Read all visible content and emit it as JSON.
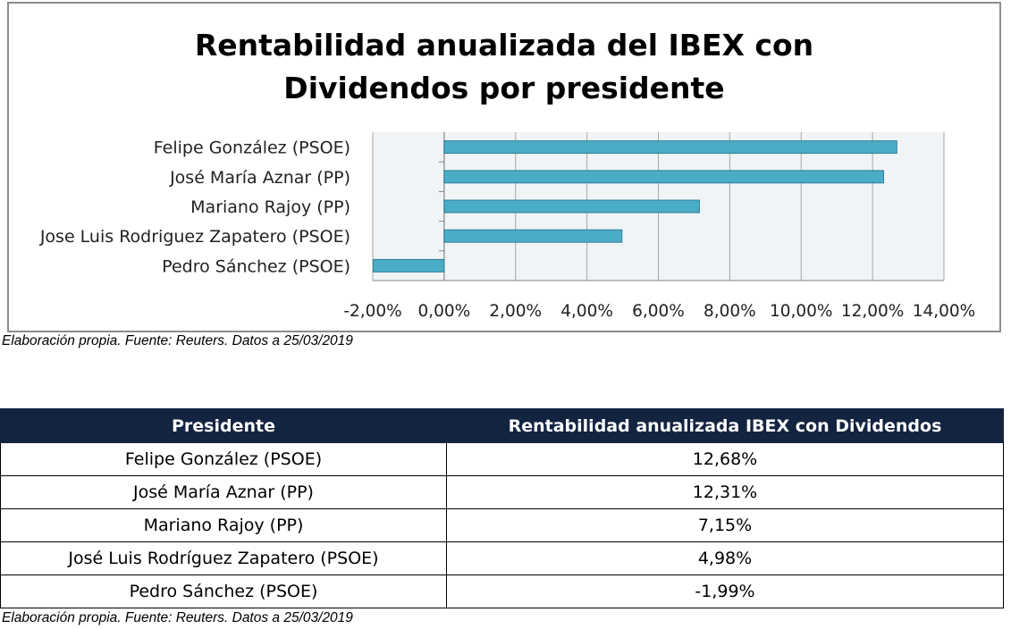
{
  "chart_data": {
    "type": "bar",
    "orientation": "horizontal",
    "title_lines": [
      "Rentabilidad anualizada del IBEX con",
      "Dividendos por presidente"
    ],
    "categories": [
      "Felipe González (PSOE)",
      "José María Aznar (PP)",
      "Mariano Rajoy (PP)",
      "Jose Luis Rodriguez Zapatero (PSOE)",
      "Pedro Sánchez (PSOE)"
    ],
    "values": [
      12.68,
      12.31,
      7.15,
      4.98,
      -1.99
    ],
    "xlim": [
      -2,
      14
    ],
    "x_ticks": [
      -2,
      0,
      2,
      4,
      6,
      8,
      10,
      12,
      14
    ],
    "x_tick_labels": [
      "-2,00%",
      "0,00%",
      "2,00%",
      "4,00%",
      "6,00%",
      "8,00%",
      "10,00%",
      "12,00%",
      "14,00%"
    ],
    "grid": true,
    "legend": "none",
    "bar_color": "#4bacc6",
    "plot_background": "#f0f4f7"
  },
  "captions": {
    "chart": "Elaboración propia. Fuente: Reuters. Datos a 25/03/2019",
    "table": "Elaboración propia. Fuente: Reuters. Datos a 25/03/2019"
  },
  "table": {
    "headers": [
      "Presidente",
      "Rentabilidad anualizada IBEX con Dividendos"
    ],
    "header_color": "#132440",
    "rows": [
      [
        "Felipe González (PSOE)",
        "12,68%"
      ],
      [
        "José María Aznar (PP)",
        "12,31%"
      ],
      [
        "Mariano Rajoy (PP)",
        "7,15%"
      ],
      [
        "José Luis Rodríguez Zapatero (PSOE)",
        "4,98%"
      ],
      [
        "Pedro Sánchez (PSOE)",
        "-1,99%"
      ]
    ]
  }
}
